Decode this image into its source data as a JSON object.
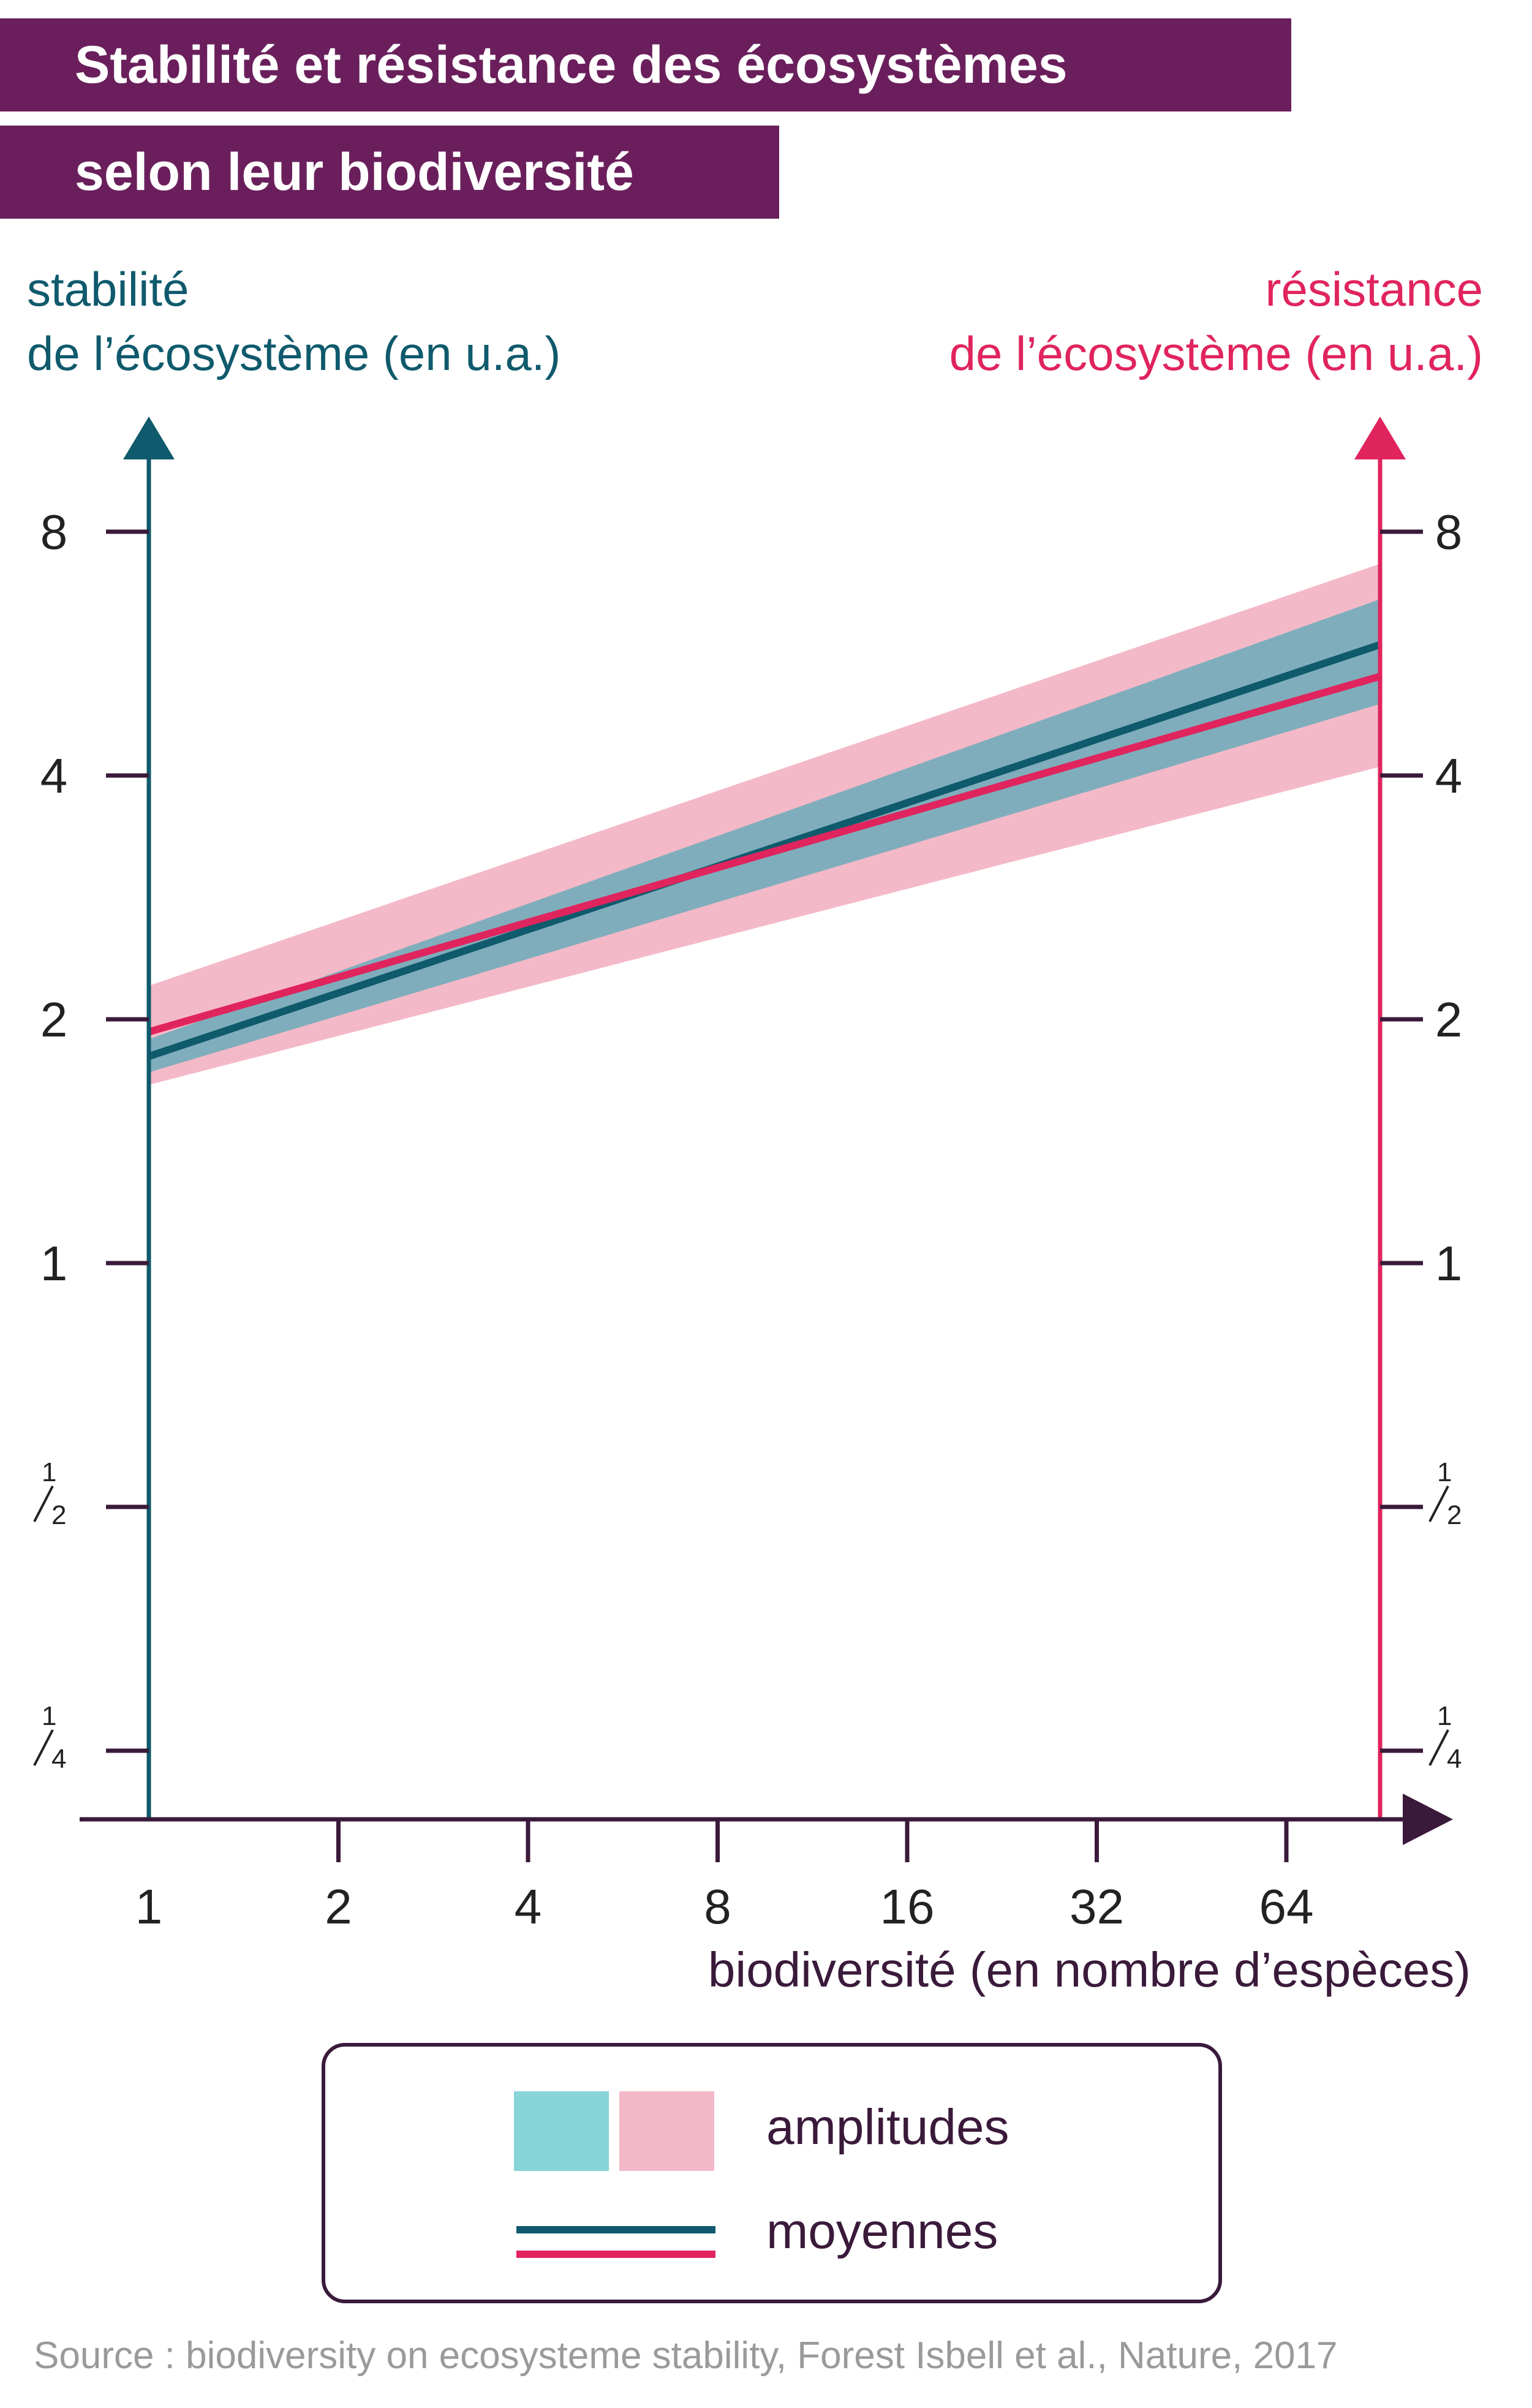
{
  "title": {
    "line1": "Stabilité et résistance des écosystèmes",
    "line2": "selon leur biodiversité"
  },
  "colors": {
    "title_band": "#6a1f5c",
    "stability": "#0f5a6c",
    "stability_band": "#87d4d9",
    "resistance": "#e0245e",
    "resistance_band": "#f4b9c8",
    "axis_dark": "#3a1a3a"
  },
  "legend": {
    "amplitudes": "amplitudes",
    "moyennes": "moyennes"
  },
  "source": "Source :  biodiversity on ecosysteme stability, Forest Isbell et al., Nature, 2017",
  "chart_data": {
    "type": "line",
    "scale": "log2 on both axes",
    "left_axis": {
      "label_line1": "stabilité",
      "label_line2": "de l’écosystème (en u.a.)",
      "ticks": [
        0.25,
        0.5,
        1,
        2,
        4,
        8
      ],
      "tick_labels": [
        "1/4",
        "1/2",
        "1",
        "2",
        "4",
        "8"
      ]
    },
    "right_axis": {
      "label_line1": "résistance",
      "label_line2": "de l’écosystème (en u.a.)",
      "ticks": [
        0.25,
        0.5,
        1,
        2,
        4,
        8
      ],
      "tick_labels": [
        "1/4",
        "1/2",
        "1",
        "2",
        "4",
        "8"
      ]
    },
    "x_axis": {
      "label": "biodiversité (en nombre d’espèces)",
      "ticks": [
        1,
        2,
        4,
        8,
        16,
        32,
        64
      ],
      "tick_labels": [
        "1",
        "2",
        "4",
        "8",
        "16",
        "32",
        "64"
      ],
      "range": [
        1,
        90
      ]
    },
    "series": [
      {
        "name": "résistance",
        "axis": "right",
        "mean": [
          [
            1,
            1.93
          ],
          [
            90,
            5.3
          ]
        ],
        "band_lower": [
          [
            1,
            1.66
          ],
          [
            90,
            4.1
          ]
        ],
        "band_upper": [
          [
            1,
            2.2
          ],
          [
            90,
            7.3
          ]
        ]
      },
      {
        "name": "stabilité",
        "axis": "left",
        "mean": [
          [
            1,
            1.8
          ],
          [
            90,
            5.8
          ]
        ],
        "band_lower": [
          [
            1,
            1.72
          ],
          [
            90,
            4.9
          ]
        ],
        "band_upper": [
          [
            1,
            1.89
          ],
          [
            90,
            6.6
          ]
        ]
      }
    ]
  }
}
